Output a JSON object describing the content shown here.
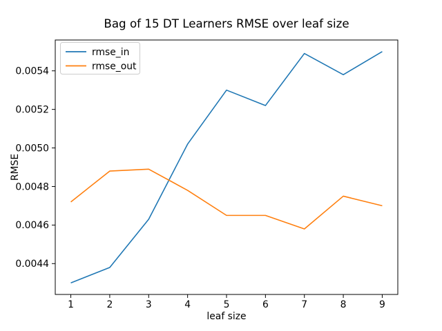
{
  "chart_data": {
    "type": "line",
    "title": "Bag of 15 DT Learners RMSE over leaf size",
    "xlabel": "leaf size",
    "ylabel": "RMSE",
    "x": [
      1,
      2,
      3,
      4,
      5,
      6,
      7,
      8,
      9
    ],
    "series": [
      {
        "name": "rmse_in",
        "color": "#1f77b4",
        "values": [
          0.0043,
          0.00438,
          0.00463,
          0.00502,
          0.0053,
          0.00522,
          0.00549,
          0.00538,
          0.0055
        ]
      },
      {
        "name": "rmse_out",
        "color": "#ff7f0e",
        "values": [
          0.00472,
          0.00488,
          0.00489,
          0.00478,
          0.00465,
          0.00465,
          0.00458,
          0.00475,
          0.0047
        ]
      }
    ],
    "xlim": [
      0.6,
      9.4
    ],
    "ylim": [
      0.00424,
      0.00556
    ],
    "xticks": [
      "1",
      "2",
      "3",
      "4",
      "5",
      "6",
      "7",
      "8",
      "9"
    ],
    "ytick_values": [
      0.0044,
      0.0046,
      0.0048,
      0.005,
      0.0052,
      0.0054
    ],
    "ytick_labels": [
      "0.0044",
      "0.0046",
      "0.0048",
      "0.0050",
      "0.0052",
      "0.0054"
    ],
    "legend_position": "upper left",
    "grid": false,
    "colors": {
      "background": "#ffffff",
      "spines": "#000000",
      "legend_border": "#cccccc",
      "legend_background": "#ffffff"
    }
  }
}
